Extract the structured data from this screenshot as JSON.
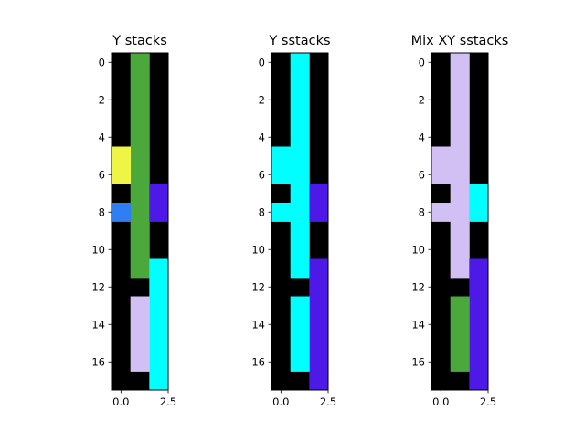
{
  "chart_data": [
    {
      "type": "heatmap",
      "title": "Y stacks",
      "xlabel": "",
      "ylabel": "",
      "xlim": [
        -0.5,
        2.5
      ],
      "ylim": [
        17.5,
        -0.5
      ],
      "x_ticks": [
        "0.0",
        "2.5"
      ],
      "y_ticks": [
        "0",
        "2",
        "4",
        "6",
        "8",
        "10",
        "12",
        "14",
        "16"
      ],
      "rows": 18,
      "cols": 3,
      "background_color": "#000000",
      "cells": [
        {
          "col": 1,
          "row_start": 0,
          "row_end": 11,
          "color": "#4ba83a"
        },
        {
          "col": 0,
          "row_start": 5,
          "row_end": 6,
          "color": "#eef545"
        },
        {
          "col": 0,
          "row_start": 8,
          "row_end": 8,
          "color": "#2f7ef2"
        },
        {
          "col": 2,
          "row_start": 7,
          "row_end": 8,
          "color": "#4c19e6"
        },
        {
          "col": 2,
          "row_start": 11,
          "row_end": 17,
          "color": "#00ffff"
        },
        {
          "col": 1,
          "row_start": 13,
          "row_end": 16,
          "color": "#d2c0f5"
        }
      ]
    },
    {
      "type": "heatmap",
      "title": "Y sstacks",
      "xlabel": "",
      "ylabel": "",
      "xlim": [
        -0.5,
        2.5
      ],
      "ylim": [
        17.5,
        -0.5
      ],
      "x_ticks": [
        "0.0",
        "2.5"
      ],
      "y_ticks": [
        "0",
        "2",
        "4",
        "6",
        "8",
        "10",
        "12",
        "14",
        "16"
      ],
      "rows": 18,
      "cols": 3,
      "background_color": "#000000",
      "cells": [
        {
          "col": 1,
          "row_start": 0,
          "row_end": 11,
          "color": "#00ffff"
        },
        {
          "col": 0,
          "row_start": 5,
          "row_end": 6,
          "color": "#00ffff"
        },
        {
          "col": 0,
          "row_start": 8,
          "row_end": 8,
          "color": "#00ffff"
        },
        {
          "col": 2,
          "row_start": 7,
          "row_end": 8,
          "color": "#4c19e6"
        },
        {
          "col": 2,
          "row_start": 11,
          "row_end": 17,
          "color": "#4c19e6"
        },
        {
          "col": 1,
          "row_start": 13,
          "row_end": 16,
          "color": "#00ffff"
        }
      ]
    },
    {
      "type": "heatmap",
      "title": "Mix XY sstacks",
      "xlabel": "",
      "ylabel": "",
      "xlim": [
        -0.5,
        2.5
      ],
      "ylim": [
        17.5,
        -0.5
      ],
      "x_ticks": [
        "0.0",
        "2.5"
      ],
      "y_ticks": [
        "0",
        "2",
        "4",
        "6",
        "8",
        "10",
        "12",
        "14",
        "16"
      ],
      "rows": 18,
      "cols": 3,
      "background_color": "#000000",
      "cells": [
        {
          "col": 1,
          "row_start": 0,
          "row_end": 11,
          "color": "#d2c0f5"
        },
        {
          "col": 0,
          "row_start": 5,
          "row_end": 6,
          "color": "#d2c0f5"
        },
        {
          "col": 0,
          "row_start": 8,
          "row_end": 8,
          "color": "#d2c0f5"
        },
        {
          "col": 2,
          "row_start": 7,
          "row_end": 8,
          "color": "#00ffff"
        },
        {
          "col": 2,
          "row_start": 11,
          "row_end": 17,
          "color": "#4c19e6"
        },
        {
          "col": 1,
          "row_start": 13,
          "row_end": 16,
          "color": "#4ba83a"
        }
      ]
    }
  ]
}
